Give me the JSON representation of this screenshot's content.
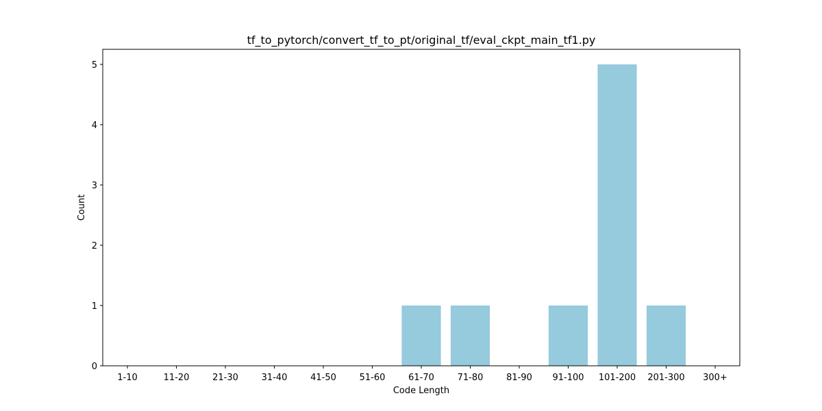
{
  "chart_data": {
    "type": "bar",
    "title": "tf_to_pytorch/convert_tf_to_pt/original_tf/eval_ckpt_main_tf1.py",
    "xlabel": "Code Length",
    "ylabel": "Count",
    "categories": [
      "1-10",
      "11-20",
      "21-30",
      "31-40",
      "41-50",
      "51-60",
      "61-70",
      "71-80",
      "81-90",
      "91-100",
      "101-200",
      "201-300",
      "300+"
    ],
    "values": [
      0,
      0,
      0,
      0,
      0,
      0,
      1,
      1,
      0,
      1,
      5,
      1,
      0
    ],
    "ylim": [
      0,
      5.25
    ],
    "yticks": [
      0,
      1,
      2,
      3,
      4,
      5
    ],
    "bar_color": "#96CADD",
    "grid": false,
    "legend": "none"
  }
}
